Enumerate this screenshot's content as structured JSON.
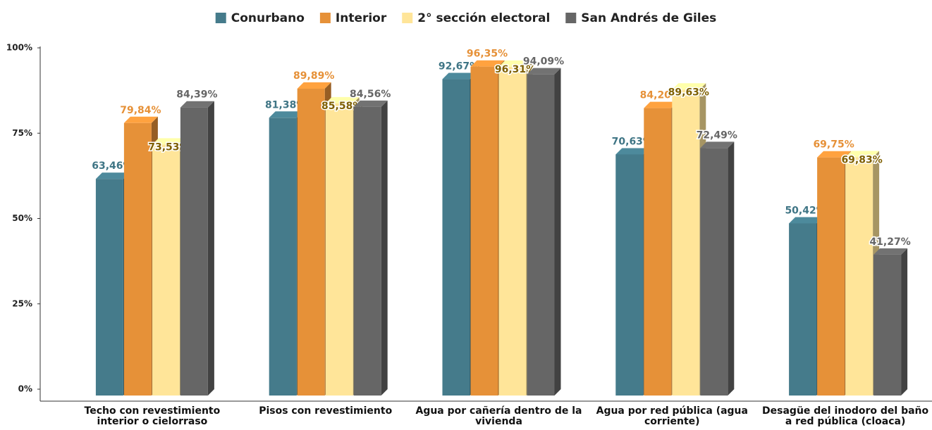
{
  "chart_data": {
    "type": "bar3d",
    "categories": [
      "Techo con revestimiento interior o cielorraso",
      "Pisos con revestimiento",
      "Agua por cañería dentro de la vivienda",
      "Agua por red pública (agua corriente)",
      "Desagüe del inodoro del baño a red pública (cloaca)"
    ],
    "series": [
      {
        "name": "Conurbano",
        "color": "#457b8b",
        "label_color": "#3f7585",
        "values": [
          63.46,
          81.38,
          92.67,
          70.63,
          50.42
        ],
        "value_labels": [
          "63,46%",
          "81,38%",
          "92,67%",
          "70,63%",
          "50,42%"
        ]
      },
      {
        "name": "Interior",
        "color": "#e69138",
        "label_color": "#e69138",
        "values": [
          79.84,
          89.89,
          96.35,
          84.2,
          69.75
        ],
        "value_labels": [
          "79,84%",
          "89,89%",
          "96,35%",
          "84,20%",
          "69,75%"
        ]
      },
      {
        "name": "2° sección electoral",
        "color": "#ffe599",
        "label_color": "#7f6000",
        "values": [
          73.53,
          85.58,
          96.31,
          89.63,
          69.83
        ],
        "value_labels": [
          "73,53%",
          "85,58%",
          "96,31%",
          "89,63%",
          "69,83%"
        ]
      },
      {
        "name": "San Andrés de Giles",
        "color": "#666666",
        "label_color": "#666666",
        "values": [
          84.39,
          84.56,
          94.09,
          72.49,
          41.27
        ],
        "value_labels": [
          "84,39%",
          "84,56%",
          "94,09%",
          "72,49%",
          "41,27%"
        ]
      }
    ],
    "ylim": [
      0,
      100
    ],
    "yticks": [
      {
        "value": 0,
        "label": "0%"
      },
      {
        "value": 25,
        "label": "25%"
      },
      {
        "value": 50,
        "label": "50%"
      },
      {
        "value": 75,
        "label": "75%"
      },
      {
        "value": 100,
        "label": "100%"
      }
    ],
    "legend": "top"
  }
}
